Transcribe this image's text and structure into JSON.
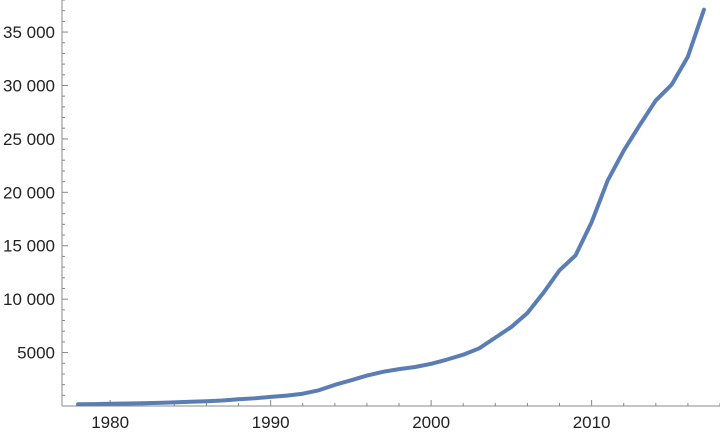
{
  "chart_data": {
    "type": "line",
    "title": "",
    "xlabel": "",
    "ylabel": "",
    "xlim": [
      1977,
      2018
    ],
    "ylim": [
      0,
      38000
    ],
    "x_ticks": [
      1980,
      1990,
      2000,
      2010
    ],
    "y_ticks": [
      5000,
      10000,
      15000,
      20000,
      25000,
      30000,
      35000
    ],
    "x_tick_labels": [
      "1980",
      "1990",
      "2000",
      "2010"
    ],
    "y_tick_labels": [
      "5000",
      "10 000",
      "15 000",
      "20 000",
      "25 000",
      "30 000",
      "35 000"
    ],
    "grid": false,
    "legend": "none",
    "colors": {
      "line": "#5a7db3",
      "axis": "#888888",
      "text": "#222222"
    },
    "series": [
      {
        "x": [
          1978,
          1979,
          1980,
          1981,
          1982,
          1983,
          1984,
          1985,
          1986,
          1987,
          1988,
          1989,
          1990,
          1991,
          1992,
          1993,
          1994,
          1995,
          1996,
          1997,
          1998,
          1999,
          2000,
          2001,
          2002,
          2003,
          2004,
          2005,
          2006,
          2007,
          2008,
          2009,
          2010,
          2011,
          2012,
          2013,
          2014,
          2015,
          2016,
          2017
        ],
        "values": [
          160,
          180,
          210,
          230,
          260,
          290,
          340,
          400,
          450,
          510,
          630,
          720,
          850,
          970,
          1150,
          1470,
          1980,
          2400,
          2850,
          3200,
          3450,
          3650,
          3950,
          4350,
          4800,
          5400,
          6400,
          7400,
          8700,
          10600,
          12700,
          14100,
          17200,
          21100,
          23900,
          26300,
          28600,
          30100,
          32700,
          37100
        ]
      }
    ]
  }
}
